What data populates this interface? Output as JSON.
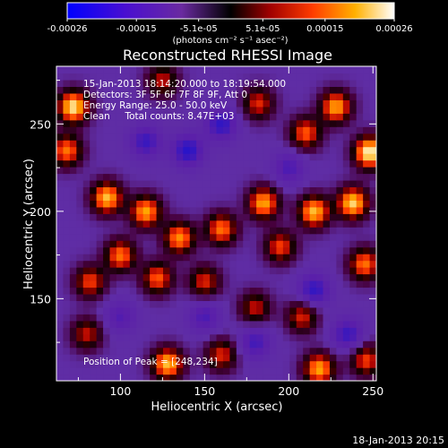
{
  "chart_data": {
    "type": "heatmap",
    "title": "Reconstructed RHESSI Image",
    "xlabel": "Heliocentric X (arcsec)",
    "ylabel": "Heliocentric Y (arcsec)",
    "xlim": [
      62,
      252
    ],
    "ylim": [
      103,
      283
    ],
    "xticks": [
      100,
      150,
      200,
      250
    ],
    "yticks": [
      150,
      200,
      250
    ],
    "colorbar": {
      "label": "(photons cm⁻² s⁻¹ asec⁻²)",
      "range": [
        -0.00026,
        0.00026
      ],
      "ticks_below": [
        "-0.00026",
        "-0.00015",
        "0.00015",
        "0.00026"
      ],
      "ticks_above": [
        "-5.1e-05",
        "5.1e-05"
      ],
      "tick_values_below": [
        -0.00026,
        -0.00015,
        0.00015,
        0.00026
      ],
      "tick_values_above": [
        -5.1e-05,
        5.1e-05
      ],
      "colors": [
        "#0000ff",
        "#5a10c0",
        "#7a2a9a",
        "#000000",
        "#b00000",
        "#ff4400",
        "#ffaa00",
        "#ffffff"
      ]
    },
    "annotations": [
      "15-Jan-2013 18:14:20.000 to 18:19:54.000",
      "Detectors: 3F 5F 6F 7F 8F 9F, Att 0",
      "Energy Range: 25.0 - 50.0 keV",
      "Clean     Total counts: 8.47E+03",
      "Position of Peak = [248,234]"
    ],
    "peak": [
      248,
      234
    ],
    "blobs": [
      {
        "x": 248,
        "y": 234,
        "v": 1.0
      },
      {
        "x": 72,
        "y": 260,
        "v": 0.95
      },
      {
        "x": 68,
        "y": 235,
        "v": 0.7
      },
      {
        "x": 92,
        "y": 208,
        "v": 0.85
      },
      {
        "x": 115,
        "y": 200,
        "v": 0.8
      },
      {
        "x": 135,
        "y": 185,
        "v": 0.75
      },
      {
        "x": 160,
        "y": 190,
        "v": 0.7
      },
      {
        "x": 185,
        "y": 205,
        "v": 0.8
      },
      {
        "x": 215,
        "y": 200,
        "v": 0.85
      },
      {
        "x": 238,
        "y": 205,
        "v": 0.9
      },
      {
        "x": 228,
        "y": 260,
        "v": 0.8
      },
      {
        "x": 210,
        "y": 245,
        "v": 0.65
      },
      {
        "x": 182,
        "y": 262,
        "v": 0.55
      },
      {
        "x": 125,
        "y": 275,
        "v": 0.5
      },
      {
        "x": 100,
        "y": 175,
        "v": 0.7
      },
      {
        "x": 82,
        "y": 160,
        "v": 0.6
      },
      {
        "x": 122,
        "y": 162,
        "v": 0.65
      },
      {
        "x": 150,
        "y": 160,
        "v": 0.55
      },
      {
        "x": 195,
        "y": 180,
        "v": 0.6
      },
      {
        "x": 245,
        "y": 170,
        "v": 0.7
      },
      {
        "x": 128,
        "y": 113,
        "v": 0.85
      },
      {
        "x": 80,
        "y": 130,
        "v": 0.5
      },
      {
        "x": 160,
        "y": 118,
        "v": 0.55
      },
      {
        "x": 218,
        "y": 110,
        "v": 0.8
      },
      {
        "x": 246,
        "y": 115,
        "v": 0.6
      },
      {
        "x": 208,
        "y": 140,
        "v": 0.55
      },
      {
        "x": 180,
        "y": 145,
        "v": 0.5
      },
      {
        "x": 140,
        "y": 235,
        "v": -0.6
      },
      {
        "x": 160,
        "y": 250,
        "v": -0.55
      },
      {
        "x": 115,
        "y": 240,
        "v": -0.5
      },
      {
        "x": 200,
        "y": 225,
        "v": -0.4
      },
      {
        "x": 215,
        "y": 155,
        "v": -0.55
      },
      {
        "x": 180,
        "y": 125,
        "v": -0.45
      },
      {
        "x": 235,
        "y": 130,
        "v": -0.5
      },
      {
        "x": 100,
        "y": 140,
        "v": -0.35
      },
      {
        "x": 150,
        "y": 140,
        "v": -0.4
      }
    ]
  },
  "footer": {
    "date": "18-Jan-2013 20:15"
  }
}
